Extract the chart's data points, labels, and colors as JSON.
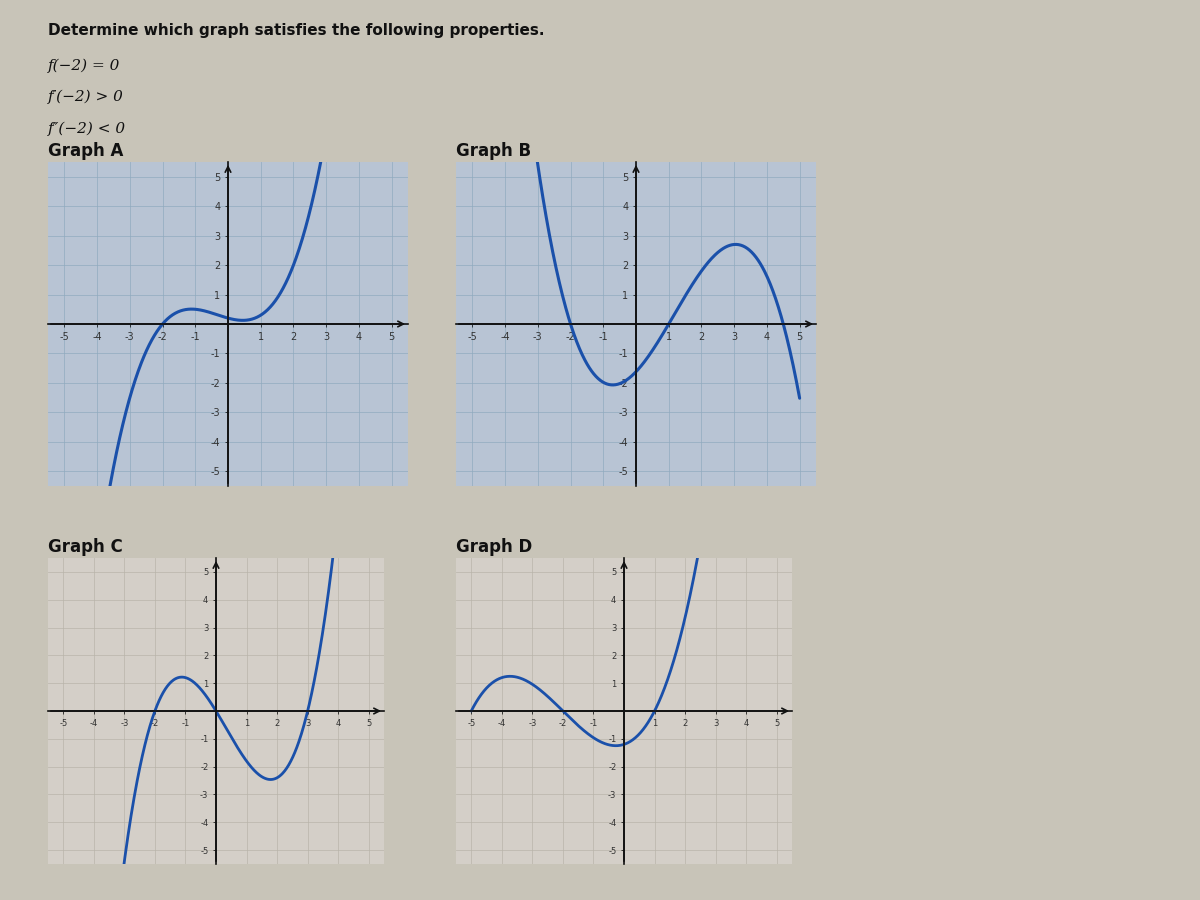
{
  "title": "Determine which graph satisfies the following properties.",
  "prop1": "f(−2) = 0",
  "prop2": "f′(−2) > 0",
  "prop3": "f″(−2) < 0",
  "graph_labels": [
    "Graph A",
    "Graph B",
    "Graph C",
    "Graph D"
  ],
  "bg_color": "#c8c4b8",
  "graph_bg_AB": "#b8c4d4",
  "graph_bg_CD": "#d4cfc8",
  "grid_color_AB": "#8faabf",
  "grid_color_CD": "#b8b4aa",
  "line_color": "#1a50aa",
  "axis_color": "#111111",
  "text_color": "#111111",
  "title_fontsize": 11,
  "prop_fontsize": 11,
  "label_fontsize": 12
}
